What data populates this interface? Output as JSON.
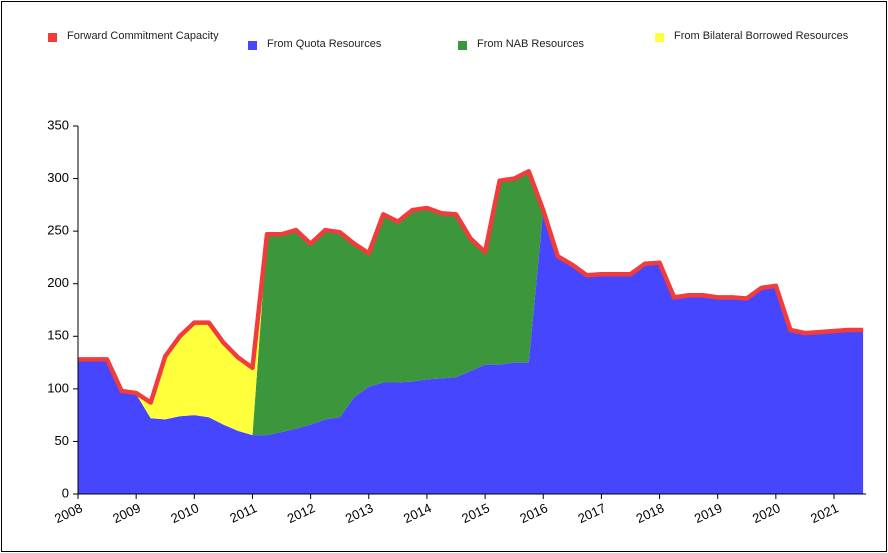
{
  "chart_data": {
    "type": "area",
    "x": [
      2008,
      2008.25,
      2008.5,
      2008.75,
      2009,
      2009.25,
      2009.5,
      2009.75,
      2010,
      2010.25,
      2010.5,
      2010.75,
      2011,
      2011.25,
      2011.5,
      2011.75,
      2012,
      2012.25,
      2012.5,
      2012.75,
      2013,
      2013.25,
      2013.5,
      2013.75,
      2014,
      2014.25,
      2014.5,
      2014.75,
      2015,
      2015.25,
      2015.5,
      2015.75,
      2016,
      2016.25,
      2016.5,
      2016.75,
      2017,
      2017.25,
      2017.5,
      2017.75,
      2018,
      2018.25,
      2018.5,
      2018.75,
      2019,
      2019.25,
      2019.5,
      2019.75,
      2020,
      2020.25,
      2020.5,
      2020.75,
      2021,
      2021.25,
      2021.5
    ],
    "series": [
      {
        "name": "Forward Commitment Capacity",
        "color": "#f23c3c",
        "kind": "line",
        "values": [
          128,
          128,
          128,
          98,
          96,
          87,
          131,
          150,
          163,
          163,
          144,
          130,
          120,
          247,
          247,
          251,
          238,
          251,
          249,
          238,
          229,
          266,
          259,
          270,
          272,
          267,
          266,
          243,
          230,
          298,
          300,
          307,
          270,
          226,
          218,
          208,
          209,
          209,
          209,
          219,
          220,
          187,
          189,
          189,
          187,
          187,
          186,
          196,
          198,
          156,
          153,
          154,
          155,
          156,
          156
        ]
      },
      {
        "name": "From Quota Resources",
        "color": "#4646ff",
        "kind": "area",
        "values": [
          126,
          126,
          126,
          97,
          95,
          72,
          71,
          74,
          75,
          73,
          66,
          60,
          56,
          56,
          59,
          62,
          66,
          71,
          73,
          92,
          102,
          106,
          106,
          107,
          109,
          110,
          111,
          117,
          123,
          123,
          125,
          125,
          270,
          225,
          218,
          208,
          209,
          209,
          209,
          219,
          220,
          187,
          189,
          189,
          187,
          187,
          186,
          196,
          198,
          156,
          153,
          154,
          155,
          156,
          156
        ]
      },
      {
        "name": "From NAB Resources",
        "color": "#3c963c",
        "kind": "area",
        "values": [
          0,
          0,
          0,
          0,
          0,
          0,
          0,
          0,
          0,
          0,
          0,
          0,
          0,
          191,
          188,
          189,
          172,
          180,
          176,
          146,
          127,
          160,
          153,
          163,
          163,
          157,
          155,
          126,
          107,
          175,
          175,
          182,
          0,
          0,
          0,
          0,
          0,
          0,
          0,
          0,
          0,
          0,
          0,
          0,
          0,
          0,
          0,
          0,
          0,
          0,
          0,
          0,
          0,
          0,
          0
        ]
      },
      {
        "name": "From Bilateral Borrowed Resources",
        "color": "#ffff3c",
        "kind": "area",
        "values": [
          0,
          0,
          0,
          0,
          0,
          15,
          60,
          76,
          88,
          90,
          78,
          70,
          64,
          0,
          0,
          0,
          0,
          0,
          0,
          0,
          0,
          0,
          0,
          0,
          0,
          0,
          0,
          0,
          0,
          0,
          0,
          0,
          0,
          0,
          0,
          0,
          0,
          0,
          0,
          0,
          0,
          0,
          0,
          0,
          0,
          0,
          0,
          0,
          0,
          0,
          0,
          0,
          0,
          0,
          0
        ]
      }
    ],
    "xlim": [
      2008,
      2021.55
    ],
    "xticks": [
      2008,
      2009,
      2010,
      2011,
      2012,
      2013,
      2014,
      2015,
      2016,
      2017,
      2018,
      2019,
      2020,
      2021
    ],
    "ylim": [
      0,
      350
    ],
    "yticks": [
      0,
      50,
      100,
      150,
      200,
      250,
      300,
      350
    ],
    "grid": false
  }
}
